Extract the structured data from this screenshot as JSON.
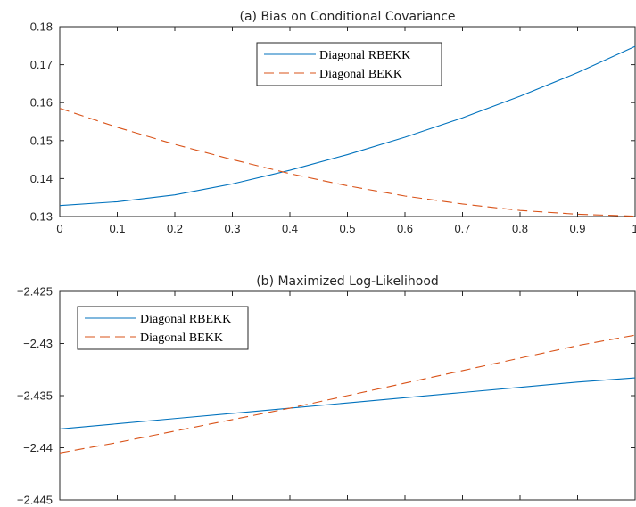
{
  "chart_data": [
    {
      "type": "line",
      "title": "(a) Bias on Conditional Covariance",
      "xlabel": "",
      "ylabel": "",
      "xlim": [
        0,
        1
      ],
      "ylim": [
        0.13,
        0.18
      ],
      "x_ticks": [
        "0",
        "0.1",
        "0.2",
        "0.3",
        "0.4",
        "0.5",
        "0.6",
        "0.7",
        "0.8",
        "0.9",
        "1"
      ],
      "y_ticks": [
        "0.13",
        "0.14",
        "0.15",
        "0.16",
        "0.17",
        "0.18"
      ],
      "grid": false,
      "legend_position": "top-center",
      "x": [
        0,
        0.1,
        0.2,
        0.3,
        0.4,
        0.5,
        0.6,
        0.7,
        0.8,
        0.9,
        1.0
      ],
      "series": [
        {
          "name": "Diagonal RBEKK",
          "color": "#0072BD",
          "style": "solid",
          "values": [
            0.1329,
            0.1339,
            0.1357,
            0.1386,
            0.1422,
            0.1463,
            0.1509,
            0.156,
            0.1617,
            0.1679,
            0.1748
          ]
        },
        {
          "name": "Diagonal BEKK",
          "color": "#D95319",
          "style": "dashed",
          "values": [
            0.1585,
            0.1535,
            0.149,
            0.145,
            0.1413,
            0.1381,
            0.1354,
            0.1333,
            0.1316,
            0.1306,
            0.1301
          ]
        }
      ]
    },
    {
      "type": "line",
      "title": "(b) Maximized Log-Likelihood",
      "xlabel": "",
      "ylabel": "",
      "xlim": [
        0,
        1
      ],
      "ylim": [
        -2.445,
        -2.425
      ],
      "x_ticks": [
        "0",
        "0.1",
        "0.2",
        "0.3",
        "0.4",
        "0.5",
        "0.6",
        "0.7",
        "0.8",
        "0.9",
        "1"
      ],
      "y_ticks": [
        "-2.445",
        "-2.44",
        "-2.435",
        "-2.43",
        "-2.425"
      ],
      "grid": false,
      "legend_position": "top-left",
      "x": [
        0,
        0.1,
        0.2,
        0.3,
        0.4,
        0.5,
        0.6,
        0.7,
        0.8,
        0.9,
        1.0
      ],
      "series": [
        {
          "name": "Diagonal RBEKK",
          "color": "#0072BD",
          "style": "solid",
          "values": [
            -2.4382,
            -2.4377,
            -2.4372,
            -2.4367,
            -2.4362,
            -2.4357,
            -2.4352,
            -2.4347,
            -2.4342,
            -2.4337,
            -2.4333
          ]
        },
        {
          "name": "Diagonal BEKK",
          "color": "#D95319",
          "style": "dashed",
          "values": [
            -2.4405,
            -2.4395,
            -2.4384,
            -2.4373,
            -2.4362,
            -2.435,
            -2.4338,
            -2.4326,
            -2.4314,
            -2.4302,
            -2.4292
          ]
        }
      ]
    }
  ]
}
